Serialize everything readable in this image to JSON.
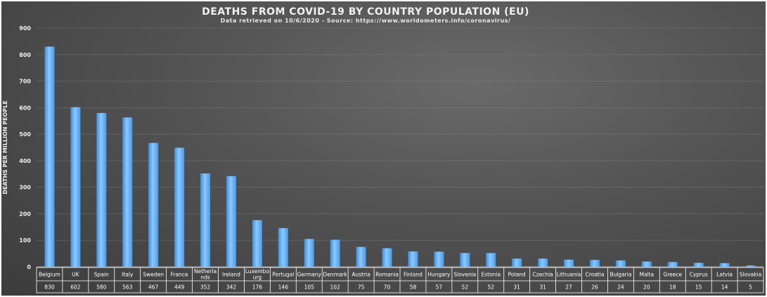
{
  "chart_data": {
    "type": "bar",
    "title": "DEATHS FROM COVID-19 BY COUNTRY POPULATION (EU)",
    "subtitle": "Data retrieved on 10/6/2020 - Source: https://www.worldometers.info/coronavirus/",
    "ylabel": "DEATHS PER MILLION PEOPLE",
    "xlabel": "",
    "ylim": [
      0,
      900
    ],
    "yticks": [
      0,
      100,
      200,
      300,
      400,
      500,
      600,
      700,
      800,
      900
    ],
    "grid": true,
    "categories": [
      [
        "Belgium"
      ],
      [
        "UK"
      ],
      [
        "Spain"
      ],
      [
        "Italy"
      ],
      [
        "Sweden"
      ],
      [
        "France"
      ],
      [
        "Netherla",
        "nds"
      ],
      [
        "Ireland"
      ],
      [
        "Luxembo",
        "urg"
      ],
      [
        "Portugal"
      ],
      [
        "Germany"
      ],
      [
        "Denmark"
      ],
      [
        "Austria"
      ],
      [
        "Romania"
      ],
      [
        "Finland"
      ],
      [
        "Hungary"
      ],
      [
        "Slovenia"
      ],
      [
        "Estonia"
      ],
      [
        "Poland"
      ],
      [
        "Czechia"
      ],
      [
        "Lithuania"
      ],
      [
        "Croatia"
      ],
      [
        "Bulgaria"
      ],
      [
        "Malta"
      ],
      [
        "Greece"
      ],
      [
        "Cyprus"
      ],
      [
        "Latvia"
      ],
      [
        "Slovakia"
      ]
    ],
    "values": [
      830,
      602,
      580,
      563,
      467,
      449,
      352,
      342,
      176,
      146,
      105,
      102,
      75,
      70,
      58,
      57,
      52,
      52,
      31,
      31,
      27,
      26,
      24,
      20,
      18,
      15,
      14,
      5
    ],
    "bar_color": "#5aaaf0",
    "table_under_axis": true
  }
}
